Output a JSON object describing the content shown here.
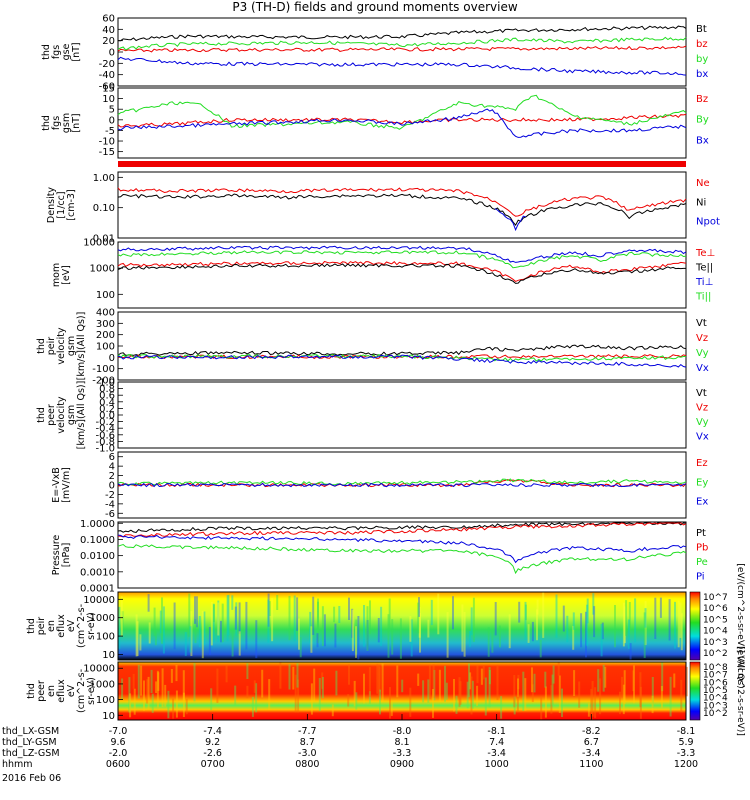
{
  "title": "P3 (TH-D) fields and ground moments overview",
  "date_label": "2016 Feb 06",
  "colors": {
    "black": "#000000",
    "red": "#ee0000",
    "green": "#22dd22",
    "blue": "#0000dd"
  },
  "chart_data": [
    {
      "id": "fgs_gse",
      "type": "line",
      "ylabel": [
        "thd",
        "fgs",
        "gse",
        "[nT]"
      ],
      "ylim": [
        -60,
        60
      ],
      "ticks": [
        "60",
        "40",
        "20",
        "0",
        "-20",
        "-40",
        "-60"
      ],
      "tick_values": [
        60,
        40,
        20,
        0,
        -20,
        -40,
        -60
      ],
      "series": [
        {
          "name": "Bt",
          "color": "#000000",
          "x": [
            0,
            0.05,
            0.12,
            0.2,
            0.35,
            0.5,
            0.6,
            0.7,
            0.8,
            0.9,
            1
          ],
          "y": [
            20,
            24,
            28,
            27,
            26,
            27,
            34,
            38,
            40,
            42,
            44
          ]
        },
        {
          "name": "bz",
          "color": "#ee0000",
          "x": [
            0,
            0.2,
            0.4,
            0.6,
            0.8,
            1
          ],
          "y": [
            2,
            4,
            4,
            5,
            6,
            8
          ]
        },
        {
          "name": "by",
          "color": "#22dd22",
          "x": [
            0,
            0.05,
            0.12,
            0.2,
            0.35,
            0.5,
            0.6,
            0.7,
            0.8,
            0.9,
            1
          ],
          "y": [
            5,
            10,
            14,
            15,
            17,
            12,
            16,
            22,
            18,
            22,
            24
          ]
        },
        {
          "name": "bx",
          "color": "#0000dd",
          "x": [
            0,
            0.05,
            0.12,
            0.2,
            0.35,
            0.5,
            0.6,
            0.7,
            0.8,
            0.9,
            1
          ],
          "y": [
            -12,
            -14,
            -20,
            -21,
            -22,
            -22,
            -22,
            -28,
            -34,
            -36,
            -38
          ]
        }
      ]
    },
    {
      "id": "fgs_gsm",
      "type": "line",
      "ylabel": [
        "thd",
        "fgs",
        "gsm",
        "[nT]"
      ],
      "ylim": [
        -18,
        15
      ],
      "ticks": [
        "15",
        "10",
        "5",
        "0",
        "-5",
        "-10",
        "-15"
      ],
      "tick_values": [
        15,
        10,
        5,
        0,
        -5,
        -10,
        -15
      ],
      "series": [
        {
          "name": "Bz",
          "color": "#ee0000",
          "x": [
            0,
            0.1,
            0.2,
            0.3,
            0.4,
            0.5,
            0.6,
            0.7,
            0.8,
            0.9,
            1
          ],
          "y": [
            -3,
            -2,
            0,
            0,
            0,
            -1,
            0,
            0,
            0,
            1,
            2
          ]
        },
        {
          "name": "By",
          "color": "#22dd22",
          "x": [
            0,
            0.1,
            0.15,
            0.2,
            0.3,
            0.4,
            0.5,
            0.6,
            0.7,
            0.73,
            0.8,
            0.9,
            1
          ],
          "y": [
            3,
            8,
            7,
            -3,
            -2,
            -1,
            -4,
            8,
            5,
            12,
            2,
            -2,
            4
          ]
        },
        {
          "name": "Bx",
          "color": "#0000dd",
          "x": [
            0,
            0.1,
            0.2,
            0.3,
            0.4,
            0.5,
            0.6,
            0.66,
            0.7,
            0.8,
            0.9,
            1
          ],
          "y": [
            -4,
            -3,
            -2,
            -1,
            0,
            -2,
            1,
            5,
            -8,
            -5,
            -5,
            -3
          ]
        }
      ]
    },
    {
      "id": "density",
      "type": "line",
      "ylabel": [
        "Density",
        "[1/cc]",
        "[cm-3]"
      ],
      "scale": "log",
      "ylim": [
        0.01,
        1.5
      ],
      "ticks": [
        "1.00",
        "0.10",
        "0.01"
      ],
      "tick_values": [
        1,
        0.1,
        0.01
      ],
      "series": [
        {
          "name": "Ne",
          "color": "#ee0000",
          "x": [
            0,
            0.1,
            0.2,
            0.3,
            0.4,
            0.5,
            0.6,
            0.65,
            0.7,
            0.75,
            0.8,
            0.85,
            0.9,
            1
          ],
          "y": [
            0.4,
            0.35,
            0.38,
            0.35,
            0.38,
            0.4,
            0.35,
            0.2,
            0.05,
            0.12,
            0.2,
            0.22,
            0.08,
            0.18
          ]
        },
        {
          "name": "Ni",
          "color": "#000000",
          "x": [
            0,
            0.1,
            0.2,
            0.3,
            0.4,
            0.5,
            0.6,
            0.65,
            0.7,
            0.75,
            0.8,
            0.85,
            0.9,
            1
          ],
          "y": [
            0.25,
            0.22,
            0.25,
            0.22,
            0.25,
            0.25,
            0.2,
            0.12,
            0.03,
            0.08,
            0.12,
            0.14,
            0.05,
            0.13
          ]
        },
        {
          "name": "Npot",
          "color": "#0000dd",
          "x": [
            0.66,
            0.7,
            0.72
          ],
          "y": [
            0.1,
            0.02,
            0.06
          ]
        }
      ]
    },
    {
      "id": "temp",
      "type": "line",
      "ylabel": [
        "mom",
        "[eV]"
      ],
      "scale": "log",
      "ylim": [
        30,
        10000
      ],
      "ticks": [
        "10000",
        "1000",
        "100"
      ],
      "tick_values": [
        10000,
        1000,
        100
      ],
      "series": [
        {
          "name": "Te⊥",
          "color": "#ee0000",
          "x": [
            0,
            0.2,
            0.4,
            0.6,
            0.7,
            0.8,
            0.85,
            0.9,
            1
          ],
          "y": [
            1300,
            1500,
            1600,
            1500,
            300,
            1200,
            700,
            900,
            1500
          ]
        },
        {
          "name": "Te||",
          "color": "#000000",
          "x": [
            0,
            0.2,
            0.4,
            0.6,
            0.7,
            0.8,
            0.85,
            0.9,
            1
          ],
          "y": [
            1000,
            1200,
            1300,
            1200,
            250,
            900,
            600,
            700,
            1100
          ]
        },
        {
          "name": "Ti⊥",
          "color": "#0000dd",
          "x": [
            0,
            0.2,
            0.4,
            0.6,
            0.7,
            0.8,
            0.85,
            0.9,
            1
          ],
          "y": [
            5000,
            6000,
            6000,
            6000,
            1500,
            4000,
            3000,
            5000,
            4000
          ]
        },
        {
          "name": "Ti||",
          "color": "#22dd22",
          "x": [
            0,
            0.2,
            0.4,
            0.6,
            0.7,
            0.8,
            0.85,
            0.9,
            1
          ],
          "y": [
            3000,
            4000,
            4000,
            4000,
            1000,
            3000,
            2000,
            3500,
            3000
          ]
        }
      ]
    },
    {
      "id": "peir_vel",
      "type": "line",
      "ylabel": [
        "thd",
        "peir",
        "velocity",
        "gsm",
        "[km/s](All Qs)]"
      ],
      "ylim": [
        -200,
        400
      ],
      "ticks": [
        "400",
        "300",
        "200",
        "100",
        "0",
        "-100",
        "-200"
      ],
      "tick_values": [
        400,
        300,
        200,
        100,
        0,
        -100,
        -200
      ],
      "series": [
        {
          "name": "Vt",
          "color": "#000000",
          "x": [
            0,
            0.2,
            0.4,
            0.6,
            0.65,
            0.7,
            0.8,
            0.9,
            1
          ],
          "y": [
            30,
            40,
            30,
            40,
            80,
            60,
            100,
            80,
            90
          ]
        },
        {
          "name": "Vz",
          "color": "#ee0000",
          "x": [
            0,
            0.5,
            1
          ],
          "y": [
            5,
            5,
            10
          ]
        },
        {
          "name": "Vy",
          "color": "#22dd22",
          "x": [
            0,
            0.5,
            0.7,
            1
          ],
          "y": [
            10,
            10,
            -20,
            0
          ]
        },
        {
          "name": "Vx",
          "color": "#0000dd",
          "x": [
            0,
            0.5,
            0.7,
            0.9,
            1
          ],
          "y": [
            0,
            5,
            -40,
            -60,
            -80
          ]
        }
      ]
    },
    {
      "id": "peer_vel",
      "type": "line",
      "ylabel": [
        "thd",
        "peer",
        "velocity",
        "gsm",
        "[km/s](All Qs)]"
      ],
      "ylim": [
        -1,
        1
      ],
      "ticks": [
        "1.0",
        "0.8",
        "0.6",
        "0.4",
        "0.2",
        "0.0",
        "-0.2",
        "-0.4",
        "-0.6",
        "-0.8",
        "-1.0"
      ],
      "tick_values": [
        1,
        0.8,
        0.6,
        0.4,
        0.2,
        0,
        -0.2,
        -0.4,
        -0.6,
        -0.8,
        -1
      ],
      "series": [
        {
          "name": "Vt",
          "color": "#000000",
          "x": [],
          "y": []
        },
        {
          "name": "Vz",
          "color": "#ee0000",
          "x": [],
          "y": []
        },
        {
          "name": "Vy",
          "color": "#22dd22",
          "x": [],
          "y": []
        },
        {
          "name": "Vx",
          "color": "#0000dd",
          "x": [],
          "y": []
        }
      ]
    },
    {
      "id": "efield",
      "type": "line",
      "ylabel": [
        "E=-VxB",
        "[mV/m]"
      ],
      "ylim": [
        -7,
        7
      ],
      "ticks": [
        "6",
        "4",
        "2",
        "0",
        "-2",
        "-4",
        "-6"
      ],
      "tick_values": [
        6,
        4,
        2,
        0,
        -2,
        -4,
        -6
      ],
      "series": [
        {
          "name": "Ez",
          "color": "#ee0000",
          "x": [
            0,
            0.2,
            0.4,
            0.6,
            0.7,
            0.8,
            0.9,
            1
          ],
          "y": [
            0,
            0,
            0,
            0,
            1,
            0,
            0,
            0
          ]
        },
        {
          "name": "Ey",
          "color": "#22dd22",
          "x": [
            0,
            0.2,
            0.4,
            0.6,
            0.7,
            0.8,
            0.9,
            1
          ],
          "y": [
            0.3,
            0.5,
            0.3,
            0.6,
            1,
            0.5,
            0.8,
            0.5
          ]
        },
        {
          "name": "Ex",
          "color": "#0000dd",
          "x": [
            0,
            0.2,
            0.4,
            0.6,
            0.8,
            1
          ],
          "y": [
            0,
            0,
            0,
            0,
            0,
            0
          ]
        }
      ]
    },
    {
      "id": "pressure",
      "type": "line",
      "ylabel": [
        "Pressure",
        "[nPa]"
      ],
      "scale": "log",
      "ylim": [
        0.0001,
        1.2
      ],
      "ticks": [
        "1.0000",
        "0.1000",
        "0.0100",
        "0.0010",
        "0.0001"
      ],
      "tick_values": [
        1,
        0.1,
        0.01,
        0.001,
        0.0001
      ],
      "series": [
        {
          "name": "Pt",
          "color": "#000000",
          "x": [
            0,
            0.2,
            0.4,
            0.6,
            0.7,
            0.8,
            0.9,
            1
          ],
          "y": [
            0.3,
            0.5,
            0.5,
            0.6,
            0.8,
            0.9,
            1,
            1
          ]
        },
        {
          "name": "Pb",
          "color": "#ee0000",
          "x": [
            0,
            0.2,
            0.4,
            0.6,
            0.7,
            0.8,
            0.9,
            1
          ],
          "y": [
            0.15,
            0.25,
            0.25,
            0.4,
            0.6,
            0.7,
            0.9,
            1
          ]
        },
        {
          "name": "Pe",
          "color": "#22dd22",
          "x": [
            0,
            0.2,
            0.4,
            0.6,
            0.7,
            0.8,
            0.9,
            1
          ],
          "y": [
            0.04,
            0.03,
            0.02,
            0.02,
            0.001,
            0.006,
            0.006,
            0.015
          ]
        },
        {
          "name": "Pi",
          "color": "#0000dd",
          "x": [
            0,
            0.2,
            0.4,
            0.6,
            0.7,
            0.8,
            0.9,
            1
          ],
          "y": [
            0.15,
            0.12,
            0.1,
            0.06,
            0.004,
            0.03,
            0.02,
            0.04
          ]
        }
      ]
    },
    {
      "id": "peir_spec",
      "type": "heatmap",
      "ylabel": [
        "thd",
        "peir",
        "en",
        "eflux",
        "eV",
        "(cm^2-s-",
        "sr-eV)"
      ],
      "scale": "log",
      "ylim": [
        5,
        25000
      ],
      "ticks": [
        "10000",
        "1000",
        "100",
        "10"
      ],
      "tick_values": [
        10000,
        1000,
        100,
        10
      ],
      "colorbar": [
        "10^7",
        "10^6",
        "10^5",
        "10^4",
        "10^3",
        "10^2"
      ],
      "cbar_label": "[eV/(cm^2-s-sr-eV)] (All Qs)"
    },
    {
      "id": "peer_spec",
      "type": "heatmap",
      "ylabel": [
        "thd",
        "peer",
        "en",
        "eflux",
        "eV",
        "(cm^2-s-",
        "sr-eV)"
      ],
      "scale": "log",
      "ylim": [
        5,
        25000
      ],
      "ticks": [
        "10000",
        "1000",
        "100",
        "10"
      ],
      "tick_values": [
        10000,
        1000,
        100,
        10
      ],
      "colorbar": [
        "10^8",
        "10^7",
        "10^6",
        "10^5",
        "10^4",
        "10^3",
        "10^2"
      ],
      "cbar_label": "[eV/(cm^2-s-sr-eV)]"
    }
  ],
  "x_axis": {
    "row_labels": [
      "thd_LX-GSM",
      "thd_LY-GSM",
      "thd_LZ-GSM",
      "hhmm"
    ],
    "rows": [
      [
        "-7.0",
        "-7.4",
        "-7.7",
        "-8.0",
        "-8.1",
        "-8.2",
        "-8.1"
      ],
      [
        "9.6",
        "9.2",
        "8.7",
        "8.1",
        "7.4",
        "6.7",
        "5.9"
      ],
      [
        "-2.0",
        "-2.6",
        "-3.0",
        "-3.3",
        "-3.4",
        "-3.4",
        "-3.3"
      ],
      [
        "0600",
        "0700",
        "0800",
        "0900",
        "1000",
        "1100",
        "1200"
      ]
    ]
  }
}
